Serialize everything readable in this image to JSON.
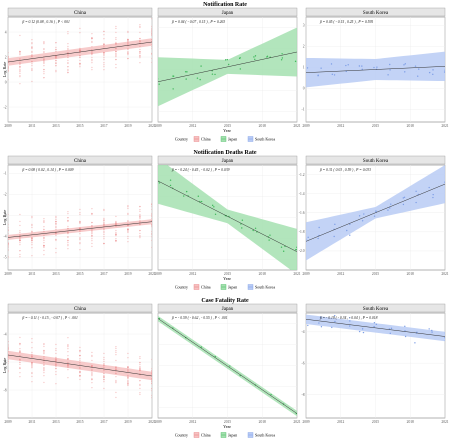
{
  "chart_data": [
    {
      "type": "scatter",
      "title": "Notification Rate",
      "ylabel": "Log Rate",
      "xlabel": "Year",
      "legend": {
        "title": "Country",
        "entries": [
          "China",
          "Japan",
          "South Korea"
        ],
        "placement": "bottom"
      },
      "panels": [
        {
          "name": "China",
          "stat": "β = 0.12 (0.08 , 0.16 ) , P < 001",
          "xticks": [
            "2009",
            "2011",
            "2013",
            "2015",
            "2017",
            "2019",
            "2021"
          ],
          "yticks": [
            "4",
            "2",
            "0",
            "-2"
          ],
          "ylim": [
            -3.2,
            5.2
          ],
          "xlim": [
            2009,
            2021
          ],
          "fit": [
            [
              2009,
              1.6
            ],
            [
              2021,
              3.2
            ]
          ],
          "band": 0.3
        },
        {
          "name": "Japan",
          "stat": "β = 0.04 ( - 0.07 , 0.15 ) , P = 0.263",
          "xticks": [
            "2009",
            "2012",
            "2015",
            "2018",
            "2021"
          ],
          "yticks": [],
          "ylim": [
            0.4,
            3.4
          ],
          "xlim": [
            2009,
            2021
          ],
          "fit": [
            [
              2009,
              1.55
            ],
            [
              2021,
              2.4
            ]
          ],
          "band_lo": 0.2,
          "band_hi": 0.7
        },
        {
          "name": "South Korea",
          "stat": "β = 0.05 ( - 0.15 , 0.25 ) , P = 0.595",
          "xticks": [
            "2009",
            "2012",
            "2015",
            "2018",
            "2021"
          ],
          "yticks": [
            "3",
            "2",
            "1",
            "0",
            "-1"
          ],
          "ylim": [
            -1.6,
            3.4
          ],
          "xlim": [
            2009,
            2021
          ],
          "fit": [
            [
              2009,
              0.75
            ],
            [
              2021,
              1.05
            ]
          ],
          "band_lo": 0.5,
          "band_hi": 0.7
        }
      ]
    },
    {
      "type": "scatter",
      "title": "Notification Deaths Rate",
      "ylabel": "Log Rate",
      "xlabel": "Year",
      "legend": {
        "title": "Country",
        "entries": [
          "China",
          "Japan",
          "South Korea"
        ],
        "placement": "bottom"
      },
      "panels": [
        {
          "name": "China",
          "stat": "β = 0.08 ( 0.02 , 0.14 ) , P = 0.009",
          "xticks": [
            "2009",
            "2011",
            "2013",
            "2015",
            "2017",
            "2019",
            "2021"
          ],
          "yticks": [
            "-1",
            "-2",
            "-3",
            "-4",
            "-5"
          ],
          "ylim": [
            -5.6,
            -0.6
          ],
          "xlim": [
            2009,
            2021
          ],
          "fit": [
            [
              2009,
              -4.05
            ],
            [
              2021,
              -3.3
            ]
          ],
          "band": 0.12
        },
        {
          "name": "Japan",
          "stat": "β = - 0.24 ( - 0.45 , - 0.02 ) , P = 0.039",
          "xticks": [
            "2009",
            "2012",
            "2015",
            "2018",
            "2021"
          ],
          "yticks": [],
          "ylim": [
            -5.2,
            -0.6
          ],
          "xlim": [
            2009,
            2021
          ],
          "fit": [
            [
              2009,
              -1.3
            ],
            [
              2021,
              -4.4
            ]
          ],
          "band_lo": 0.3,
          "band_hi": 1.0
        },
        {
          "name": "South Korea",
          "stat": "β = 0.31 ( 0.03 , 0.59 ) , P = 0.033",
          "xticks": [
            "2009",
            "2012",
            "2015",
            "2018",
            "2021"
          ],
          "yticks": [
            "-1.2",
            "-1.4",
            "-1.6",
            "-1.8",
            "-2.0"
          ],
          "ylim": [
            -2.2,
            -1.1
          ],
          "xlim": [
            2009,
            2021
          ],
          "fit": [
            [
              2009,
              -1.9
            ],
            [
              2021,
              -1.3
            ]
          ],
          "band_lo": 0.06,
          "band_hi": 0.2
        }
      ]
    },
    {
      "type": "scatter",
      "title": "Case Fatality Rate",
      "ylabel": "Log Rate",
      "xlabel": "Year",
      "legend": {
        "title": "Country",
        "entries": [
          "China",
          "Japan",
          "South Korea"
        ],
        "placement": "bottom"
      },
      "panels": [
        {
          "name": "China",
          "stat": "β = - 0.11 ( - 0.15 , - 0.07 ) , P < .001",
          "xticks": [
            "2009",
            "2011",
            "2013",
            "2015",
            "2017",
            "2019",
            "2021"
          ],
          "yticks": [
            "-4",
            "-6",
            "-8"
          ],
          "ylim": [
            -10,
            -2.5
          ],
          "xlim": [
            2009,
            2021
          ],
          "fit": [
            [
              2009,
              -5.5
            ],
            [
              2021,
              -7.0
            ]
          ],
          "band": 0.3
        },
        {
          "name": "Japan",
          "stat": "β = - 0.59 ( - 0.62 , - 0.55 ) , P < .001",
          "xticks": [
            "2009",
            "2012",
            "2015",
            "2018",
            "2021"
          ],
          "yticks": [],
          "ylim": [
            -7.2,
            -2.5
          ],
          "xlim": [
            2009,
            2021
          ],
          "fit": [
            [
              2009,
              -2.75
            ],
            [
              2021,
              -7.0
            ]
          ],
          "band": 0.12
        },
        {
          "name": "South Korea",
          "stat": "β = - 0.19 ( - 0.34 , - 0.04 ) , P = 0.018",
          "xticks": [
            "2009",
            "2012",
            "2015",
            "2018",
            "2021"
          ],
          "yticks": [
            "-4",
            "-6",
            "-8"
          ],
          "ylim": [
            -9.5,
            -2.8
          ],
          "xlim": [
            2009,
            2021
          ],
          "fit": [
            [
              2009,
              -3.2
            ],
            [
              2021,
              -4.3
            ]
          ],
          "band": 0.3
        }
      ]
    }
  ],
  "colors": {
    "China": "#e8797a",
    "Japan": "#3fb85a",
    "South Korea": "#7d9ee6",
    "China_fill": "#f6c2c2",
    "Japan_fill": "#a5e0b0",
    "South Korea_fill": "#b9cbf5",
    "strip": "#e6e6e6",
    "grid": "#ececec",
    "line": "#333333"
  }
}
